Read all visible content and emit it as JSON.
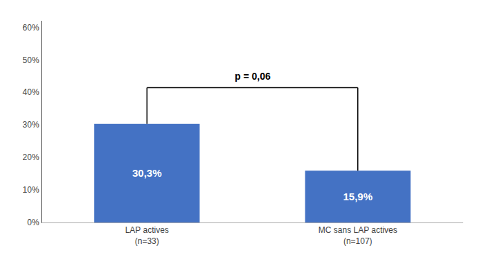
{
  "chart_data": {
    "type": "bar",
    "categories": [
      "LAP actives\n(n=33)",
      "MC sans LAP actives\n(n=107)"
    ],
    "values": [
      0.303,
      0.159
    ],
    "value_labels": [
      "30,3%",
      "15,9%"
    ],
    "data_labels": true,
    "color": "#4472C4",
    "ylim": [
      0,
      0.62
    ],
    "yticks": [
      {
        "value": 0.0,
        "label": "0%"
      },
      {
        "value": 0.1,
        "label": "10%"
      },
      {
        "value": 0.2,
        "label": "20%"
      },
      {
        "value": 0.3,
        "label": "30%"
      },
      {
        "value": 0.4,
        "label": "40%"
      },
      {
        "value": 0.5,
        "label": "50%"
      },
      {
        "value": 0.6,
        "label": "60%"
      }
    ],
    "grid": false,
    "annotations": [
      {
        "text": "p = 0,06"
      }
    ]
  }
}
